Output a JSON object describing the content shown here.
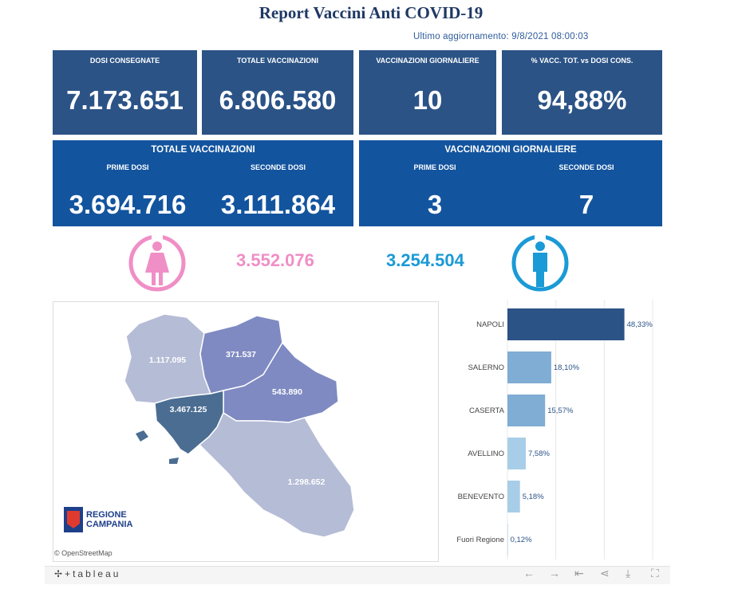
{
  "header": {
    "title": "Report Vaccini Anti COVID-19",
    "updated": "Ultimo aggiornamento: 9/8/2021 08:00:03"
  },
  "kpis": [
    {
      "label": "DOSI  CONSEGNATE",
      "value": "7.173.651"
    },
    {
      "label": "TOTALE VACCINAZIONI",
      "value": "6.806.580"
    },
    {
      "label": "VACCINAZIONI GIORNALIERE",
      "value": "10"
    },
    {
      "label": "% VACC. TOT. vs DOSI CONS.",
      "value": "94,88%"
    }
  ],
  "totals_panel": {
    "title": "TOTALE VACCINAZIONI",
    "first_label": "PRIME DOSI",
    "first_value": "3.694.716",
    "second_label": "SECONDE DOSI",
    "second_value": "3.111.864"
  },
  "daily_panel": {
    "title": "VACCINAZIONI GIORNALIERE",
    "first_label": "PRIME DOSI",
    "first_value": "3",
    "second_label": "SECONDE DOSI",
    "second_value": "7"
  },
  "gender": {
    "female_value": "3.552.076",
    "female_color": "#f08ec6",
    "female_icon": "female-person-icon",
    "male_value": "3.254.504",
    "male_color": "#1a9ad6",
    "male_icon": "male-person-icon"
  },
  "map": {
    "provinces": [
      {
        "name": "Caserta",
        "value": "1.117.095"
      },
      {
        "name": "Benevento",
        "value": "371.537"
      },
      {
        "name": "Avellino",
        "value": "543.890"
      },
      {
        "name": "Napoli",
        "value": "3.467.125"
      },
      {
        "name": "Salerno",
        "value": "1.298.652"
      }
    ],
    "logo_line1": "REGIONE",
    "logo_line2": "CAMPANIA",
    "attribution": "© OpenStreetMap"
  },
  "chart_data": {
    "type": "bar",
    "orientation": "horizontal",
    "categories": [
      "NAPOLI",
      "SALERNO",
      "CASERTA",
      "AVELLINO",
      "BENEVENTO",
      "Fuori Regione"
    ],
    "values": [
      48.33,
      18.1,
      15.57,
      7.58,
      5.18,
      0.12
    ],
    "labels": [
      "48,33%",
      "18,10%",
      "15,57%",
      "7,58%",
      "5,18%",
      "0,12%"
    ],
    "colors": [
      "#2b5386",
      "#7fadd4",
      "#7fadd4",
      "#a8cde8",
      "#a8cde8",
      "#a8cde8"
    ],
    "xlim": [
      0,
      60
    ],
    "grid": true
  },
  "footer": {
    "brand": "tableau"
  }
}
